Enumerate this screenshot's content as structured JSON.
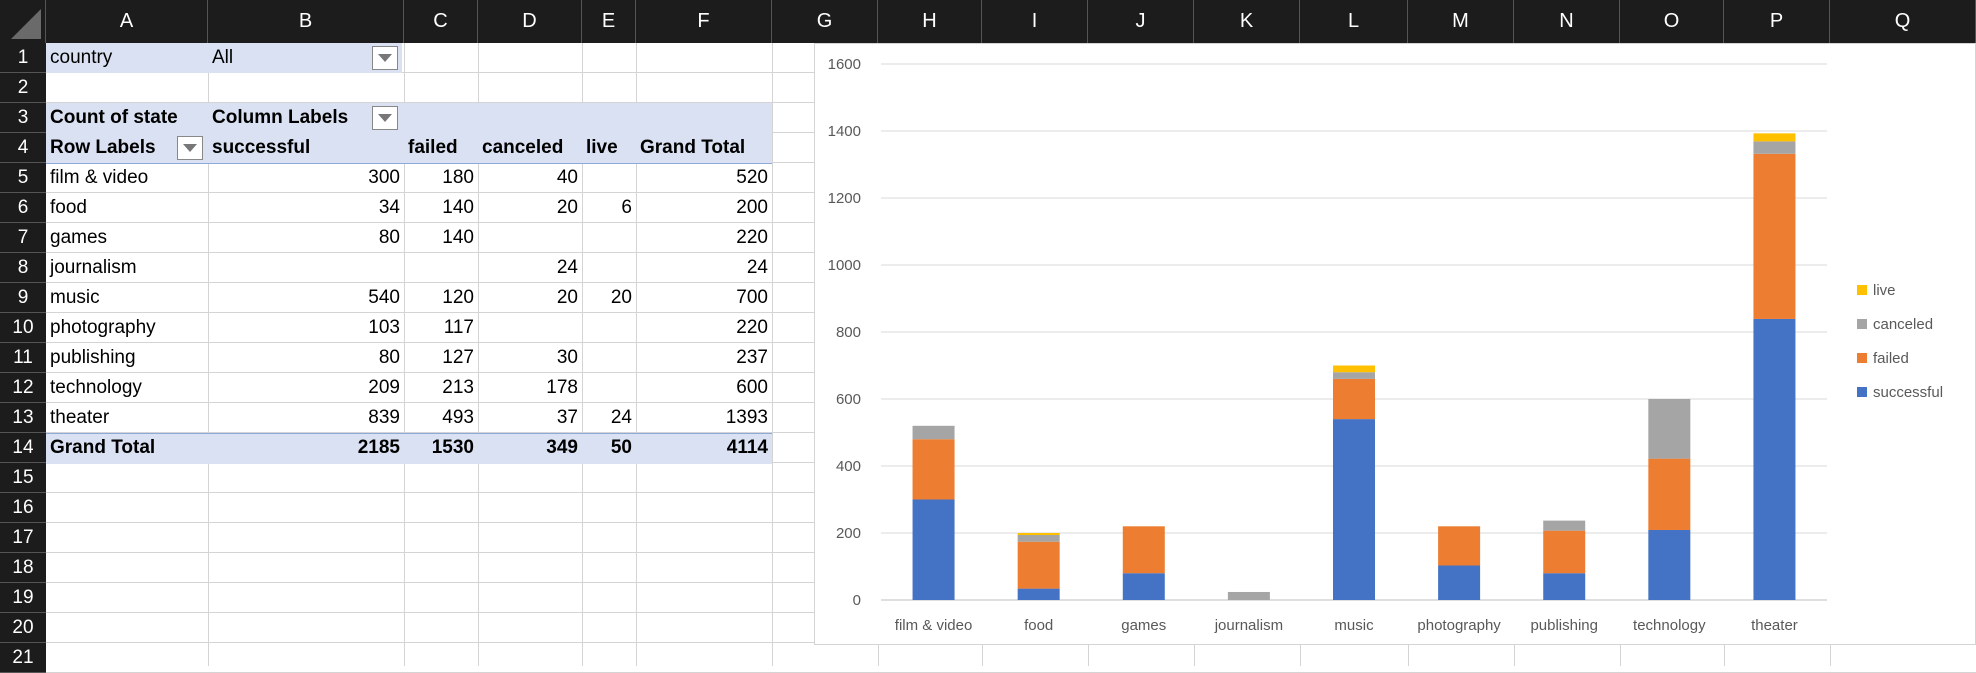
{
  "columns": [
    "A",
    "B",
    "C",
    "D",
    "E",
    "F",
    "G",
    "H",
    "I",
    "J",
    "K",
    "L",
    "M",
    "N",
    "O",
    "P",
    "Q"
  ],
  "rows": [
    "1",
    "2",
    "3",
    "4",
    "5",
    "6",
    "7",
    "8",
    "9",
    "10",
    "11",
    "12",
    "13",
    "14",
    "15",
    "16",
    "17",
    "18",
    "19",
    "20",
    "21"
  ],
  "filter": {
    "label": "country",
    "value": "All"
  },
  "pivot": {
    "count_label": "Count of state",
    "column_labels": "Column Labels",
    "row_labels": "Row Labels",
    "headers": [
      "successful",
      "failed",
      "canceled",
      "live",
      "Grand Total"
    ],
    "rows": [
      {
        "name": "film & video",
        "values": [
          "300",
          "180",
          "40",
          "",
          "520"
        ]
      },
      {
        "name": "food",
        "values": [
          "34",
          "140",
          "20",
          "6",
          "200"
        ]
      },
      {
        "name": "games",
        "values": [
          "80",
          "140",
          "",
          "",
          "220"
        ]
      },
      {
        "name": "journalism",
        "values": [
          "",
          "",
          "24",
          "",
          "24"
        ]
      },
      {
        "name": "music",
        "values": [
          "540",
          "120",
          "20",
          "20",
          "700"
        ]
      },
      {
        "name": "photography",
        "values": [
          "103",
          "117",
          "",
          "",
          "220"
        ]
      },
      {
        "name": "publishing",
        "values": [
          "80",
          "127",
          "30",
          "",
          "237"
        ]
      },
      {
        "name": "technology",
        "values": [
          "209",
          "213",
          "178",
          "",
          "600"
        ]
      },
      {
        "name": "theater",
        "values": [
          "839",
          "493",
          "37",
          "24",
          "1393"
        ]
      }
    ],
    "grand_total": {
      "name": "Grand Total",
      "values": [
        "2185",
        "1530",
        "349",
        "50",
        "4114"
      ]
    }
  },
  "chart_data": {
    "type": "bar",
    "stacked": true,
    "categories": [
      "film & video",
      "food",
      "games",
      "journalism",
      "music",
      "photography",
      "publishing",
      "technology",
      "theater"
    ],
    "series": [
      {
        "name": "successful",
        "color": "#4472c4",
        "values": [
          300,
          34,
          80,
          0,
          540,
          103,
          80,
          209,
          839
        ]
      },
      {
        "name": "failed",
        "color": "#ed7d31",
        "values": [
          180,
          140,
          140,
          0,
          120,
          117,
          127,
          213,
          493
        ]
      },
      {
        "name": "canceled",
        "color": "#a5a5a5",
        "values": [
          40,
          20,
          0,
          24,
          20,
          0,
          30,
          178,
          37
        ]
      },
      {
        "name": "live",
        "color": "#ffc000",
        "values": [
          0,
          6,
          0,
          0,
          20,
          0,
          0,
          0,
          24
        ]
      }
    ],
    "yticks": [
      "0",
      "200",
      "400",
      "600",
      "800",
      "1000",
      "1200",
      "1400",
      "1600"
    ],
    "ylim": [
      0,
      1600
    ],
    "grid": true,
    "legend": "right"
  }
}
